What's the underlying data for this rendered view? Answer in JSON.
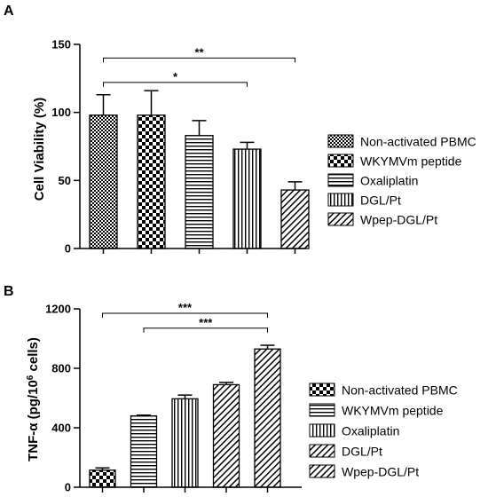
{
  "chart_data": [
    {
      "panel": "A",
      "type": "bar",
      "ylabel": "Cell Viability (%)",
      "ylim": [
        0,
        150
      ],
      "yticks": [
        "0",
        "50",
        "100",
        "150"
      ],
      "categories": [
        "Non-activated PBMC",
        "WKYMVm peptide",
        "Oxaliplatin",
        "DGL/Pt",
        "Wpep-DGL/Pt"
      ],
      "values": [
        98,
        98,
        83,
        73,
        43
      ],
      "errors": [
        15,
        18,
        11,
        5,
        6
      ],
      "patterns": [
        "fine-check",
        "check",
        "horizontal",
        "vertical",
        "diagonal"
      ],
      "legend_position": "right",
      "annotations": [
        {
          "text": "**",
          "from": 0,
          "to": 4,
          "y": 140
        },
        {
          "text": "*",
          "from": 0,
          "to": 3,
          "y": 122
        }
      ]
    },
    {
      "panel": "B",
      "type": "bar",
      "ylabel": "TNF-α (pg/10",
      "ylabel_sup": "6",
      "ylabel_end": " cells)",
      "ylim": [
        0,
        1200
      ],
      "yticks": [
        "0",
        "400",
        "800",
        "1200"
      ],
      "categories": [
        "Non-activated PBMC",
        "WKYMVm peptide",
        "Oxaliplatin",
        "DGL/Pt",
        "Wpep-DGL/Pt"
      ],
      "values": [
        115,
        480,
        595,
        690,
        930
      ],
      "errors": [
        15,
        5,
        25,
        15,
        25
      ],
      "patterns": [
        "check",
        "horizontal",
        "vertical",
        "diagonal",
        "diagonal"
      ],
      "legend_position": "right",
      "annotations": [
        {
          "text": "***",
          "from": 0,
          "to": 4,
          "y": 1170
        },
        {
          "text": "***",
          "from": 1,
          "to": 4,
          "y": 1070
        }
      ]
    }
  ]
}
